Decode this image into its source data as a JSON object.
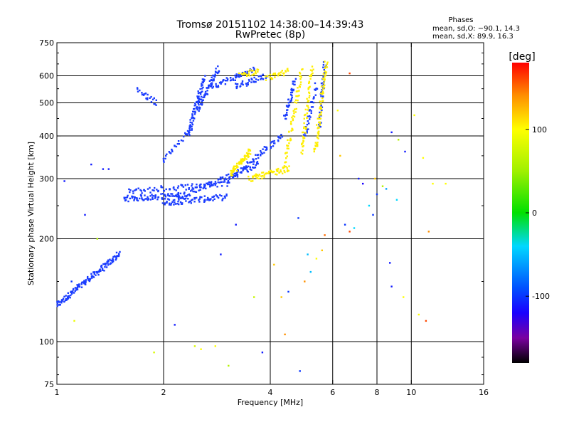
{
  "chart_data": {
    "type": "scatter",
    "title": "Tromsø 20151102 14:38:00–14:39:43",
    "subtitle": "RwPretec (8p)",
    "xlabel": "Frequency [MHz]",
    "ylabel": "Stationary phase Virtual Height [km]",
    "x_scale": "log",
    "y_scale": "log",
    "xlim": [
      1,
      16
    ],
    "ylim": [
      75,
      750
    ],
    "x_ticks": [
      {
        "v": 1,
        "label": "1"
      },
      {
        "v": 2,
        "label": "2"
      },
      {
        "v": 4,
        "label": "4"
      },
      {
        "v": 6,
        "label": "6"
      },
      {
        "v": 8,
        "label": "8"
      },
      {
        "v": 10,
        "label": "10"
      },
      {
        "v": 16,
        "label": "16"
      }
    ],
    "y_ticks": [
      {
        "v": 75,
        "label": "75"
      },
      {
        "v": 100,
        "label": "100"
      },
      {
        "v": 200,
        "label": "200"
      },
      {
        "v": 300,
        "label": "300"
      },
      {
        "v": 400,
        "label": "400"
      },
      {
        "v": 500,
        "label": "500"
      },
      {
        "v": 600,
        "label": "600"
      },
      {
        "v": 750,
        "label": "750"
      }
    ],
    "grid": true,
    "grid_x": [
      2,
      4,
      6,
      8,
      10
    ],
    "grid_y": [
      100,
      200,
      300,
      400,
      500,
      600
    ],
    "legend": {
      "header": "Phases",
      "lines": [
        "mean, sd,O: −90.1, 14.3",
        "mean, sd,X: 89.9, 16.3"
      ]
    },
    "colorbar": {
      "label": "[deg]",
      "min": -180,
      "max": 180,
      "ticks": [
        {
          "v": 100,
          "label": "100"
        },
        {
          "v": 0,
          "label": "0"
        },
        {
          "v": -100,
          "label": "-100"
        }
      ],
      "stops": [
        {
          "v": -180,
          "color": "#000000"
        },
        {
          "v": -150,
          "color": "#7a00a0"
        },
        {
          "v": -120,
          "color": "#1a00ff"
        },
        {
          "v": -90,
          "color": "#0050ff"
        },
        {
          "v": -40,
          "color": "#00d8ff"
        },
        {
          "v": 0,
          "color": "#00e000"
        },
        {
          "v": 50,
          "color": "#a0f000"
        },
        {
          "v": 100,
          "color": "#ffff00"
        },
        {
          "v": 140,
          "color": "#ff9000"
        },
        {
          "v": 180,
          "color": "#ff0000"
        }
      ]
    },
    "colors": {
      "O_mode": "#1a3cff",
      "X_mode": "#ffee00"
    },
    "series": [
      {
        "name": "O",
        "traces": [
          {
            "f0": 1.0,
            "f1": 1.5,
            "h0": 128,
            "h1": 180,
            "n": 50
          },
          {
            "f0": 1.55,
            "f1": 2.25,
            "h0": 262,
            "h1": 268,
            "n": 26
          },
          {
            "f0": 2.0,
            "f1": 3.0,
            "h0": 255,
            "h1": 265,
            "n": 26
          },
          {
            "f0": 1.6,
            "f1": 2.9,
            "h0": 275,
            "h1": 290,
            "n": 24
          },
          {
            "f0": 2.2,
            "f1": 3.7,
            "h0": 265,
            "h1": 330,
            "n": 30
          },
          {
            "f0": 3.0,
            "f1": 4.3,
            "h0": 290,
            "h1": 400,
            "n": 26
          },
          {
            "f0": 2.35,
            "f1": 2.6,
            "h0": 410,
            "h1": 590,
            "n": 22
          },
          {
            "f0": 2.5,
            "f1": 2.85,
            "h0": 480,
            "h1": 630,
            "n": 22
          },
          {
            "f0": 2.75,
            "f1": 3.6,
            "h0": 560,
            "h1": 625,
            "n": 18
          },
          {
            "f0": 3.2,
            "f1": 3.9,
            "h0": 560,
            "h1": 600,
            "n": 14
          },
          {
            "f0": 1.7,
            "f1": 1.9,
            "h0": 545,
            "h1": 500,
            "n": 8
          },
          {
            "f0": 4.4,
            "f1": 4.7,
            "h0": 450,
            "h1": 580,
            "n": 14
          },
          {
            "f0": 5.0,
            "f1": 5.4,
            "h0": 400,
            "h1": 560,
            "n": 12
          },
          {
            "f0": 2.0,
            "f1": 2.4,
            "h0": 340,
            "h1": 420,
            "n": 10
          },
          {
            "f0": 5.5,
            "f1": 5.7,
            "h0": 420,
            "h1": 650,
            "n": 16
          }
        ]
      },
      {
        "name": "X",
        "traces": [
          {
            "f0": 3.1,
            "f1": 3.5,
            "h0": 310,
            "h1": 360,
            "n": 22
          },
          {
            "f0": 3.5,
            "f1": 4.5,
            "h0": 300,
            "h1": 320,
            "n": 20
          },
          {
            "f0": 4.4,
            "f1": 4.9,
            "h0": 330,
            "h1": 620,
            "n": 22
          },
          {
            "f0": 4.9,
            "f1": 5.25,
            "h0": 360,
            "h1": 630,
            "n": 20
          },
          {
            "f0": 5.35,
            "f1": 5.75,
            "h0": 360,
            "h1": 650,
            "n": 26
          },
          {
            "f0": 3.9,
            "f1": 4.5,
            "h0": 590,
            "h1": 620,
            "n": 10
          },
          {
            "f0": 3.3,
            "f1": 3.7,
            "h0": 605,
            "h1": 620,
            "n": 8
          }
        ]
      }
    ],
    "scatter_points": [
      {
        "x": 1.25,
        "y": 330,
        "c": -110
      },
      {
        "x": 1.35,
        "y": 320,
        "c": -110
      },
      {
        "x": 1.2,
        "y": 235,
        "c": -110
      },
      {
        "x": 1.05,
        "y": 295,
        "c": -110
      },
      {
        "x": 1.1,
        "y": 150,
        "c": -100
      },
      {
        "x": 1.12,
        "y": 115,
        "c": 90
      },
      {
        "x": 1.3,
        "y": 200,
        "c": 60
      },
      {
        "x": 1.4,
        "y": 320,
        "c": -110
      },
      {
        "x": 1.88,
        "y": 93,
        "c": 80
      },
      {
        "x": 2.15,
        "y": 112,
        "c": -110
      },
      {
        "x": 2.45,
        "y": 97,
        "c": 80
      },
      {
        "x": 2.55,
        "y": 95,
        "c": 100
      },
      {
        "x": 2.8,
        "y": 97,
        "c": 100
      },
      {
        "x": 3.05,
        "y": 85,
        "c": 60
      },
      {
        "x": 3.6,
        "y": 135,
        "c": 70
      },
      {
        "x": 3.8,
        "y": 93,
        "c": -110
      },
      {
        "x": 4.1,
        "y": 168,
        "c": 120
      },
      {
        "x": 4.3,
        "y": 135,
        "c": 120
      },
      {
        "x": 4.4,
        "y": 105,
        "c": 140
      },
      {
        "x": 4.5,
        "y": 140,
        "c": -100
      },
      {
        "x": 4.85,
        "y": 82,
        "c": -100
      },
      {
        "x": 5.0,
        "y": 150,
        "c": 140
      },
      {
        "x": 5.2,
        "y": 160,
        "c": -50
      },
      {
        "x": 5.4,
        "y": 175,
        "c": 100
      },
      {
        "x": 5.6,
        "y": 185,
        "c": 120
      },
      {
        "x": 5.7,
        "y": 205,
        "c": 150
      },
      {
        "x": 4.8,
        "y": 230,
        "c": -100
      },
      {
        "x": 5.1,
        "y": 180,
        "c": -50
      },
      {
        "x": 6.3,
        "y": 350,
        "c": 120
      },
      {
        "x": 6.5,
        "y": 220,
        "c": -100
      },
      {
        "x": 6.7,
        "y": 210,
        "c": 160
      },
      {
        "x": 6.9,
        "y": 215,
        "c": -40
      },
      {
        "x": 7.1,
        "y": 300,
        "c": -110
      },
      {
        "x": 7.3,
        "y": 290,
        "c": -120
      },
      {
        "x": 7.6,
        "y": 250,
        "c": -40
      },
      {
        "x": 7.8,
        "y": 235,
        "c": -100
      },
      {
        "x": 8.0,
        "y": 270,
        "c": -100
      },
      {
        "x": 8.3,
        "y": 285,
        "c": 60
      },
      {
        "x": 8.5,
        "y": 280,
        "c": -60
      },
      {
        "x": 8.8,
        "y": 410,
        "c": -110
      },
      {
        "x": 9.2,
        "y": 390,
        "c": 60
      },
      {
        "x": 9.6,
        "y": 360,
        "c": -110
      },
      {
        "x": 8.7,
        "y": 170,
        "c": -110
      },
      {
        "x": 8.8,
        "y": 145,
        "c": -110
      },
      {
        "x": 9.5,
        "y": 135,
        "c": 100
      },
      {
        "x": 10.5,
        "y": 120,
        "c": 100
      },
      {
        "x": 11.0,
        "y": 115,
        "c": 160
      },
      {
        "x": 11.2,
        "y": 210,
        "c": 140
      },
      {
        "x": 11.5,
        "y": 290,
        "c": 100
      },
      {
        "x": 10.8,
        "y": 345,
        "c": 100
      },
      {
        "x": 12.5,
        "y": 290,
        "c": 100
      },
      {
        "x": 10.2,
        "y": 460,
        "c": 100
      },
      {
        "x": 6.7,
        "y": 610,
        "c": 160
      },
      {
        "x": 6.2,
        "y": 475,
        "c": 100
      },
      {
        "x": 7.9,
        "y": 300,
        "c": 120
      },
      {
        "x": 9.1,
        "y": 260,
        "c": -40
      },
      {
        "x": 3.2,
        "y": 220,
        "c": -110
      },
      {
        "x": 2.9,
        "y": 180,
        "c": -110
      }
    ]
  }
}
